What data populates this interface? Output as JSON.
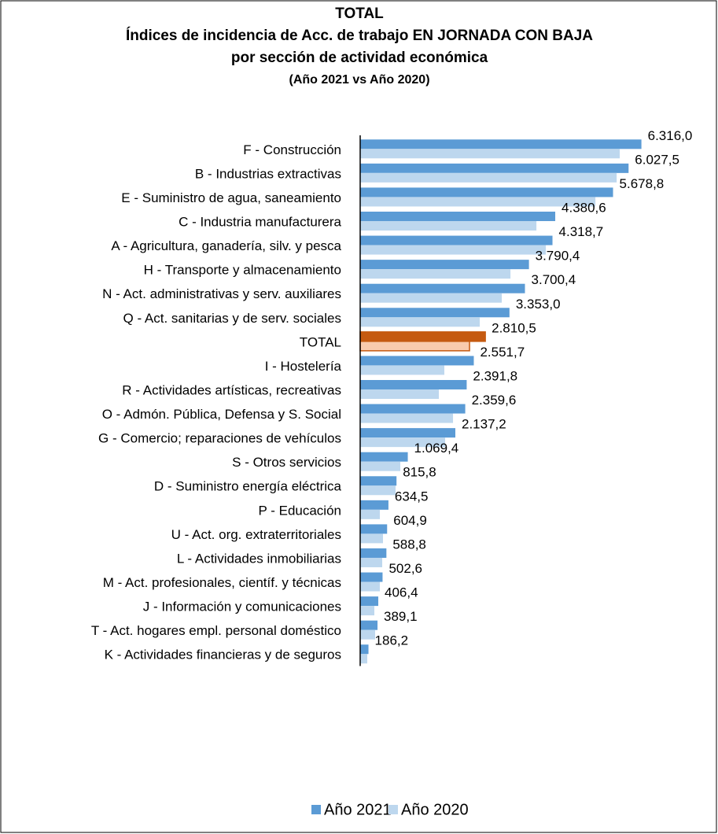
{
  "chart_data": {
    "type": "barh",
    "title": "TOTAL",
    "subtitle": [
      "Índices de incidencia de Acc. de trabajo EN JORNADA CON BAJA",
      "por sección de actividad económica",
      "(Año 2021 vs Año 2020)"
    ],
    "categories": [
      "F - Construcción",
      "B - Industrias extractivas",
      "E - Suministro de agua, saneamiento",
      "C - Industria manufacturera",
      "A - Agricultura, ganadería, silv. y pesca",
      "H - Transporte y almacenamiento",
      "N - Act. administrativas y serv. auxiliares",
      "Q - Act. sanitarias y de serv. sociales",
      "TOTAL",
      "I - Hostelería",
      "R - Actividades artísticas, recreativas",
      "O - Admón. Pública, Defensa y S. Social",
      "G - Comercio; reparaciones de vehículos",
      "S - Otros servicios",
      "D - Suministro energía eléctrica",
      "P - Educación",
      "U - Act. org. extraterritoriales",
      "L - Actividades inmobiliarias",
      "M - Act. profesionales, científ. y técnicas",
      "J - Información y comunicaciones",
      "T - Act. hogares empl. personal doméstico",
      "K - Actividades financieras y de seguros"
    ],
    "series": [
      {
        "name": "Año 2021",
        "color": "#5b9bd5",
        "highlight_color": "#c55a11",
        "values": [
          6316.0,
          6027.5,
          5678.8,
          4380.6,
          4318.7,
          3790.4,
          3700.4,
          3353.0,
          2810.5,
          2551.7,
          2391.8,
          2359.6,
          2137.2,
          1069.4,
          815.8,
          634.5,
          604.9,
          588.8,
          502.6,
          406.4,
          389.1,
          186.2
        ],
        "value_labels": [
          "6.316,0",
          "6.027,5",
          "5.678,8",
          "4.380,6",
          "4.318,7",
          "3.790,4",
          "3.700,4",
          "3.353,0",
          "2.810,5",
          "2.551,7",
          "2.391,8",
          "2.359,6",
          "2.137,2",
          "1.069,4",
          "815,8",
          "634,5",
          "604,9",
          "588,8",
          "502,6",
          "406,4",
          "389,1",
          "186,2"
        ]
      },
      {
        "name": "Año 2020",
        "color": "#bdd7ee",
        "highlight_color": "#f8cbad",
        "values": [
          5830,
          5760,
          5283,
          3958,
          4170,
          3375,
          3180,
          2686,
          2456,
          1890,
          1767,
          2085,
          1908,
          901,
          795,
          442,
          512,
          495,
          442,
          318,
          336,
          159
        ]
      }
    ],
    "highlight_category": "TOTAL",
    "xlim": [
      0,
      7100
    ],
    "legend": "bottom"
  }
}
